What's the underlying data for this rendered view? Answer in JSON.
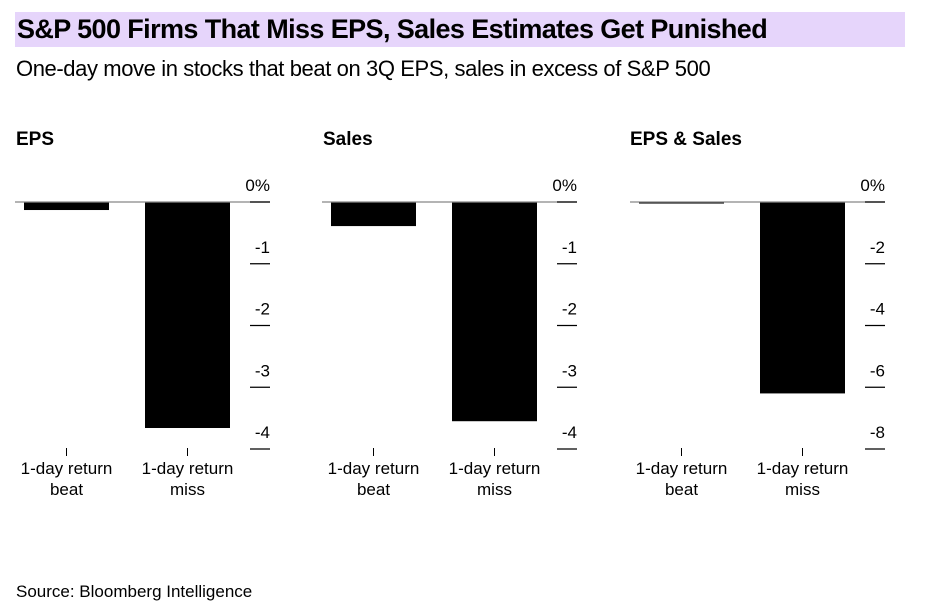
{
  "header": {
    "title": "S&P 500 Firms That Miss EPS, Sales Estimates Get Punished",
    "subtitle": "One-day move in stocks that beat on 3Q EPS, sales in excess of S&P 500",
    "highlight_color": "#e6d5fb"
  },
  "footer": {
    "source": "Source: Bloomberg Intelligence"
  },
  "chart_data": [
    {
      "type": "bar",
      "title": "EPS",
      "categories": [
        [
          "1-day return",
          "beat"
        ],
        [
          "1-day return",
          "miss"
        ]
      ],
      "values": [
        -0.13,
        -3.66
      ],
      "ylim": [
        -4.0,
        0
      ],
      "yticks": [
        0,
        -1,
        -2,
        -3,
        -4
      ],
      "ytick_labels": [
        "0%",
        "-1",
        "-2",
        "-3",
        "-4"
      ],
      "bar_color": "#000000",
      "grid": false,
      "xlabel": "",
      "ylabel": ""
    },
    {
      "type": "bar",
      "title": "Sales",
      "categories": [
        [
          "1-day return",
          "beat"
        ],
        [
          "1-day return",
          "miss"
        ]
      ],
      "values": [
        -0.39,
        -3.55
      ],
      "ylim": [
        -4.0,
        0
      ],
      "yticks": [
        0,
        -1,
        -2,
        -3,
        -4
      ],
      "ytick_labels": [
        "0%",
        "-1",
        "-2",
        "-3",
        "-4"
      ],
      "bar_color": "#000000",
      "grid": false,
      "xlabel": "",
      "ylabel": ""
    },
    {
      "type": "bar",
      "title": "EPS & Sales",
      "categories": [
        [
          "1-day return",
          "beat"
        ],
        [
          "1-day return",
          "miss"
        ]
      ],
      "values": [
        -0.05,
        -6.2
      ],
      "ylim": [
        -8.0,
        0
      ],
      "yticks": [
        0,
        -2,
        -4,
        -6,
        -8
      ],
      "ytick_labels": [
        "0%",
        "-2",
        "-4",
        "-6",
        "-8"
      ],
      "bar_color": "#000000",
      "grid": false,
      "xlabel": "",
      "ylabel": ""
    }
  ]
}
